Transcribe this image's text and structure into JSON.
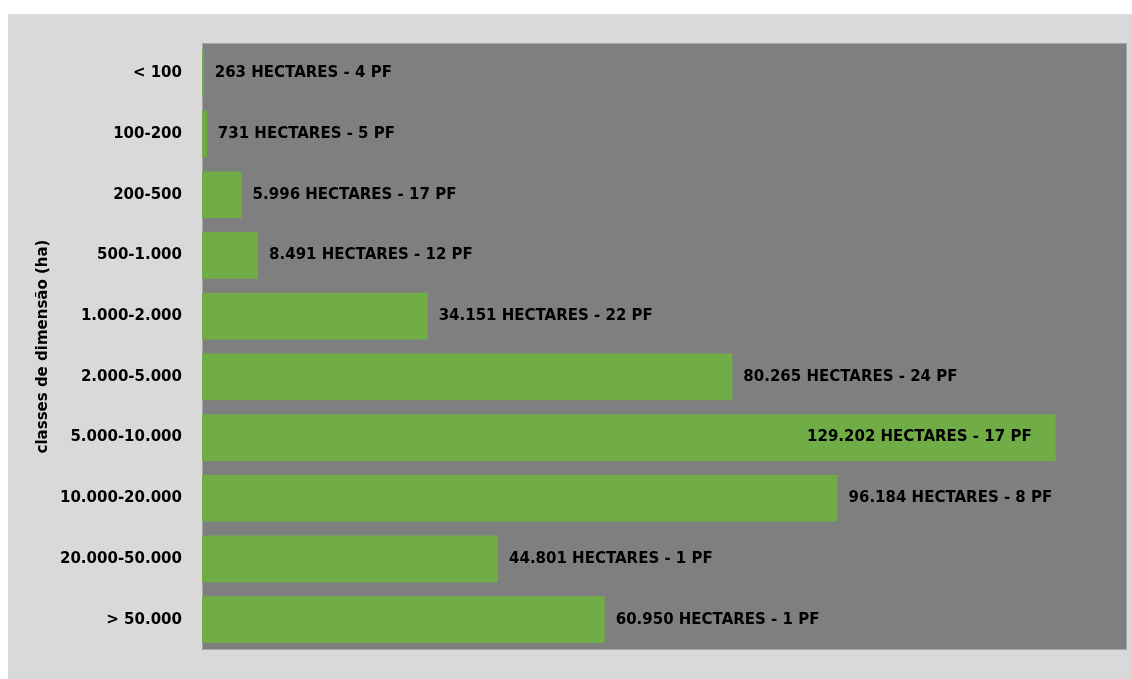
{
  "chart_data": {
    "type": "bar",
    "orientation": "horizontal",
    "ylabel": "classes de dimensão (ha)",
    "categories": [
      "< 100",
      "100-200",
      "200-500",
      "500-1.000",
      "1.000-2.000",
      "2.000-5.000",
      "5.000-10.000",
      "10.000-20.000",
      "20.000-50.000",
      "> 50.000"
    ],
    "values": [
      263,
      731,
      5996,
      8491,
      34151,
      80265,
      129202,
      96184,
      44801,
      60950
    ],
    "value_labels": [
      "263 HECTARES - 4 PF",
      "731 HECTARES - 5 PF",
      "5.996 HECTARES - 17 PF",
      "8.491 HECTARES - 12 PF",
      "34.151 HECTARES - 22 PF",
      "80.265 HECTARES - 24 PF",
      "129.202 HECTARES - 17 PF",
      "96.184 HECTARES - 8 PF",
      "44.801 HECTARES - 1 PF",
      "60.950 HECTARES - 1 PF"
    ],
    "color": "#70ad47",
    "xlim": [
      0,
      140000
    ],
    "tick_labels": "y",
    "grid": false,
    "legend": false
  }
}
